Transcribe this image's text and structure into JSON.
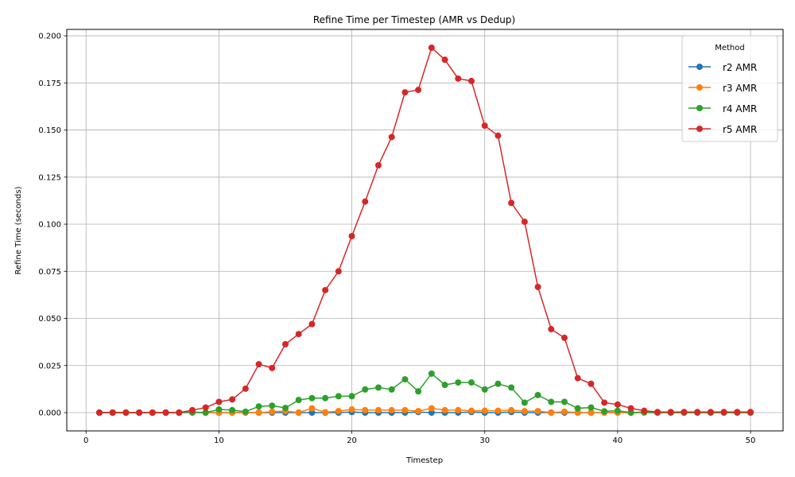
{
  "chart_data": {
    "type": "line",
    "title": "Refine Time per Timestep (AMR vs Dedup)",
    "xlabel": "Timestep",
    "ylabel": "Refine Time (seconds)",
    "xlim": [
      -1.45,
      52.45
    ],
    "ylim": [
      -0.0097,
      0.2034
    ],
    "xticks": [
      0,
      10,
      20,
      30,
      40,
      50
    ],
    "xtick_labels": [
      "0",
      "10",
      "20",
      "30",
      "40",
      "50"
    ],
    "yticks": [
      0,
      0.025,
      0.05,
      0.075,
      0.1,
      0.125,
      0.15,
      0.175,
      0.2
    ],
    "ytick_labels": [
      "0.000",
      "0.025",
      "0.050",
      "0.075",
      "0.100",
      "0.125",
      "0.150",
      "0.175",
      "0.200"
    ],
    "grid": true,
    "legend": {
      "title": "Method",
      "placement": "top-right"
    },
    "x": [
      1,
      2,
      3,
      4,
      5,
      6,
      7,
      8,
      9,
      10,
      11,
      12,
      13,
      14,
      15,
      16,
      17,
      18,
      19,
      20,
      21,
      22,
      23,
      24,
      25,
      26,
      27,
      28,
      29,
      30,
      31,
      32,
      33,
      34,
      35,
      36,
      37,
      38,
      39,
      40,
      41,
      42,
      43,
      44,
      45,
      46,
      47,
      48,
      49,
      50
    ],
    "series": [
      {
        "name": "r2 AMR",
        "color": "#1f77b4",
        "values": [
          0,
          0,
          0,
          0,
          0,
          0,
          0,
          0,
          0,
          0,
          0,
          0,
          0,
          0,
          0,
          0,
          0,
          0,
          0,
          0.0003,
          0,
          0,
          0,
          0,
          0.0003,
          0,
          0,
          0,
          0.0003,
          0,
          0,
          0.0003,
          0,
          0,
          0,
          0,
          0,
          0,
          0,
          0,
          0,
          0,
          0,
          0,
          0,
          0,
          0,
          0,
          0,
          0
        ]
      },
      {
        "name": "r3 AMR",
        "color": "#ff7f0e",
        "values": [
          0,
          0,
          0,
          0,
          0,
          0,
          0,
          0.0002,
          0,
          0,
          0,
          0,
          0,
          0.0005,
          0.0008,
          0,
          0.0023,
          0.0002,
          0.0008,
          0.0017,
          0.0013,
          0.0013,
          0.0013,
          0.0013,
          0.0008,
          0.0023,
          0.0013,
          0.0013,
          0.001,
          0.001,
          0.001,
          0.0013,
          0.0008,
          0.0008,
          0,
          0.0005,
          0,
          0,
          0,
          0,
          0,
          0,
          0,
          0,
          0,
          0,
          0,
          0,
          0,
          0
        ]
      },
      {
        "name": "r4 AMR",
        "color": "#2ca02c",
        "values": [
          0,
          0,
          0,
          0,
          0,
          0,
          0,
          0.0003,
          0,
          0.0017,
          0.0013,
          0.0005,
          0.0033,
          0.0037,
          0.0025,
          0.0067,
          0.0077,
          0.0077,
          0.0087,
          0.0087,
          0.0123,
          0.0133,
          0.0123,
          0.0177,
          0.0113,
          0.0207,
          0.0147,
          0.016,
          0.016,
          0.0123,
          0.0153,
          0.0133,
          0.0053,
          0.0093,
          0.0057,
          0.0057,
          0.0023,
          0.0027,
          0.0007,
          0.001,
          0,
          0.0003,
          0,
          0,
          0,
          0,
          0,
          0,
          0,
          0
        ]
      },
      {
        "name": "r5 AMR",
        "color": "#d62728",
        "values": [
          0,
          0,
          0,
          0,
          0,
          0,
          0,
          0.0013,
          0.0027,
          0.0057,
          0.007,
          0.0127,
          0.0257,
          0.0237,
          0.0363,
          0.0417,
          0.047,
          0.065,
          0.075,
          0.0937,
          0.112,
          0.1313,
          0.1463,
          0.17,
          0.1713,
          0.1937,
          0.1873,
          0.1773,
          0.176,
          0.1523,
          0.147,
          0.1113,
          0.1013,
          0.0667,
          0.0443,
          0.0397,
          0.0183,
          0.0153,
          0.0053,
          0.0043,
          0.0023,
          0.001,
          0.0003,
          0.0003,
          0.0003,
          0.0003,
          0.0003,
          0.0003,
          0.0003,
          0.0003
        ]
      }
    ]
  }
}
